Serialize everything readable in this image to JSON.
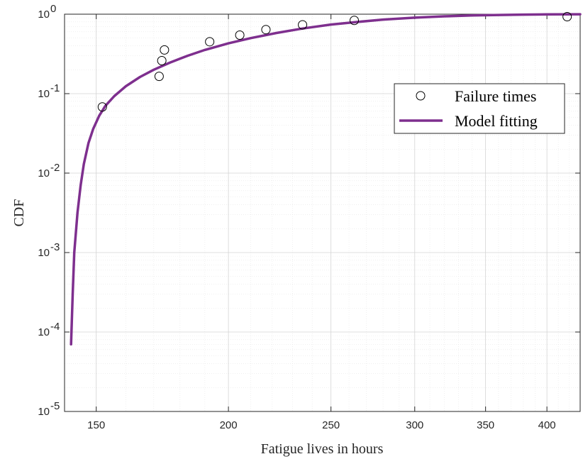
{
  "chart_data": {
    "type": "scatter",
    "xlabel": "Fatigue lives in hours",
    "ylabel": "CDF",
    "xscale": "log",
    "yscale": "log",
    "xlim": [
      140,
      430
    ],
    "ylim": [
      1e-05,
      1
    ],
    "grid": true,
    "minor_grid": true,
    "legend_position": "right-upper",
    "x_ticks": [
      150,
      200,
      250,
      300,
      350,
      400
    ],
    "x_tick_labels": [
      "150",
      "200",
      "250",
      "300",
      "350",
      "400"
    ],
    "y_ticks": [
      1e-05,
      0.0001,
      0.001,
      0.01,
      0.1,
      1
    ],
    "y_tick_labels": [
      {
        "base": "10",
        "exp": "-5"
      },
      {
        "base": "10",
        "exp": "-4"
      },
      {
        "base": "10",
        "exp": "-3"
      },
      {
        "base": "10",
        "exp": "-2"
      },
      {
        "base": "10",
        "exp": "-1"
      },
      {
        "base": "10",
        "exp": "0"
      }
    ],
    "series": [
      {
        "name": "Failure times",
        "kind": "markers",
        "marker": "open-circle",
        "color": "#000000",
        "points": [
          {
            "x": 152,
            "y": 0.068
          },
          {
            "x": 172,
            "y": 0.165
          },
          {
            "x": 173,
            "y": 0.26
          },
          {
            "x": 174,
            "y": 0.355
          },
          {
            "x": 192,
            "y": 0.45
          },
          {
            "x": 205,
            "y": 0.545
          },
          {
            "x": 217,
            "y": 0.64
          },
          {
            "x": 235,
            "y": 0.735
          },
          {
            "x": 263,
            "y": 0.835
          },
          {
            "x": 418,
            "y": 0.93
          }
        ]
      },
      {
        "name": "Model fitting",
        "kind": "line",
        "color": "#7E2F8E",
        "points": [
          {
            "x": 142,
            "y": 7e-05
          },
          {
            "x": 142.5,
            "y": 0.0003
          },
          {
            "x": 143,
            "y": 0.001
          },
          {
            "x": 144,
            "y": 0.0032
          },
          {
            "x": 145,
            "y": 0.007
          },
          {
            "x": 146,
            "y": 0.013
          },
          {
            "x": 147.5,
            "y": 0.024
          },
          {
            "x": 149,
            "y": 0.036
          },
          {
            "x": 151,
            "y": 0.053
          },
          {
            "x": 153,
            "y": 0.07
          },
          {
            "x": 156,
            "y": 0.093
          },
          {
            "x": 160,
            "y": 0.124
          },
          {
            "x": 165,
            "y": 0.162
          },
          {
            "x": 170,
            "y": 0.2
          },
          {
            "x": 176,
            "y": 0.245
          },
          {
            "x": 183,
            "y": 0.3
          },
          {
            "x": 190,
            "y": 0.355
          },
          {
            "x": 200,
            "y": 0.43
          },
          {
            "x": 210,
            "y": 0.5
          },
          {
            "x": 222,
            "y": 0.58
          },
          {
            "x": 235,
            "y": 0.66
          },
          {
            "x": 250,
            "y": 0.74
          },
          {
            "x": 265,
            "y": 0.8
          },
          {
            "x": 280,
            "y": 0.855
          },
          {
            "x": 300,
            "y": 0.905
          },
          {
            "x": 320,
            "y": 0.94
          },
          {
            "x": 340,
            "y": 0.963
          },
          {
            "x": 360,
            "y": 0.978
          },
          {
            "x": 380,
            "y": 0.987
          },
          {
            "x": 400,
            "y": 0.993
          },
          {
            "x": 430,
            "y": 0.997
          }
        ]
      }
    ]
  }
}
